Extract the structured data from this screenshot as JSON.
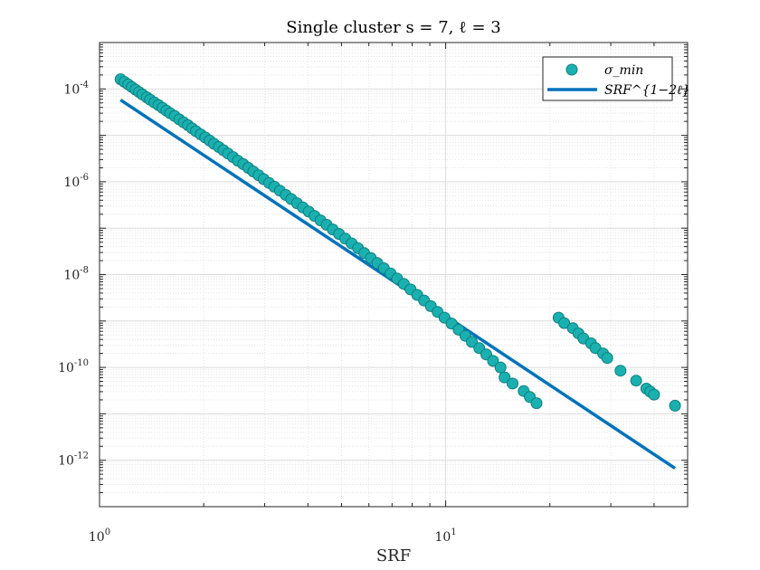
{
  "chart_data": {
    "type": "scatter",
    "title": "Single cluster s = 7, ℓ = 3",
    "xlabel": "SRF",
    "ylabel": "",
    "xscale": "log",
    "yscale": "log",
    "xlim": [
      1,
      50
    ],
    "ylim": [
      1e-13,
      0.001
    ],
    "grid": true,
    "minor_grid": true,
    "legend_position": "top-right",
    "x_ticks": [
      {
        "base": "10",
        "exp": "0"
      },
      {
        "base": "10",
        "exp": "1"
      }
    ],
    "y_ticks": [
      {
        "value": 0.0001,
        "base": "10",
        "exp": "-4"
      },
      {
        "value": 1e-06,
        "base": "10",
        "exp": "-6"
      },
      {
        "value": 1e-08,
        "base": "10",
        "exp": "-8"
      },
      {
        "value": 1e-10,
        "base": "10",
        "exp": "-10"
      },
      {
        "value": 1e-12,
        "base": "10",
        "exp": "-12"
      }
    ],
    "series": [
      {
        "name": "σ_min",
        "kind": "scatter",
        "color": "#1ab0b0",
        "edge_color": "#0e7f7f",
        "x": [
          1.15,
          1.18,
          1.21,
          1.24,
          1.27,
          1.3,
          1.33,
          1.37,
          1.4,
          1.44,
          1.48,
          1.52,
          1.56,
          1.6,
          1.65,
          1.7,
          1.75,
          1.8,
          1.85,
          1.9,
          1.96,
          2.02,
          2.08,
          2.14,
          2.21,
          2.28,
          2.35,
          2.43,
          2.51,
          2.6,
          2.69,
          2.78,
          2.88,
          2.98,
          3.09,
          3.2,
          3.32,
          3.45,
          3.58,
          3.72,
          3.87,
          4.02,
          4.18,
          4.35,
          4.53,
          4.72,
          4.92,
          5.13,
          5.35,
          5.58,
          5.82,
          6.08,
          6.35,
          6.63,
          6.93,
          7.24,
          7.57,
          7.92,
          8.28,
          8.66,
          9.06,
          9.48,
          9.92,
          10.4,
          10.9,
          11.4,
          11.9,
          12.5,
          13.1,
          13.7,
          14.4,
          14.8,
          15.6,
          16.8,
          17.5,
          18.3,
          21.2,
          22.0,
          23.3,
          24.2,
          25.0,
          26.3,
          27.1,
          28.5,
          29.3,
          32.0,
          35.5,
          38.0,
          39.0,
          40.0,
          46.0
        ],
        "y": [
          0.000162,
          0.000142,
          0.000125,
          0.00011,
          9.7e-05,
          8.6e-05,
          7.6e-05,
          6.6e-05,
          5.9e-05,
          5.1e-05,
          4.5e-05,
          3.9e-05,
          3.4e-05,
          3e-05,
          2.6e-05,
          2.2e-05,
          1.9e-05,
          1.65e-05,
          1.42e-05,
          1.23e-05,
          1.05e-05,
          9e-06,
          7.7e-06,
          6.6e-06,
          5.6e-06,
          4.8e-06,
          4.05e-06,
          3.4e-06,
          2.85e-06,
          2.4e-06,
          2e-06,
          1.67e-06,
          1.38e-06,
          1.14e-06,
          9.4e-07,
          7.8e-07,
          6.4e-07,
          5.2e-07,
          4.25e-07,
          3.45e-07,
          2.8e-07,
          2.27e-07,
          1.83e-07,
          1.47e-07,
          1.18e-07,
          9.4e-08,
          7.5e-08,
          5.95e-08,
          4.7e-08,
          3.7e-08,
          2.9e-08,
          2.27e-08,
          1.77e-08,
          1.37e-08,
          1.06e-08,
          8.2e-09,
          6.3e-09,
          4.8e-09,
          3.65e-09,
          2.77e-09,
          2.09e-09,
          1.57e-09,
          1.18e-09,
          8.8e-10,
          6.5e-10,
          4.8e-10,
          3.55e-10,
          2.6e-10,
          1.9e-10,
          1.38e-10,
          1e-10,
          6.1e-11,
          4.5e-11,
          3.1e-11,
          2.3e-11,
          1.7e-11,
          1.18e-09,
          9e-10,
          7e-10,
          5.4e-10,
          4.2e-10,
          3.3e-10,
          2.6e-10,
          2e-10,
          1.6e-10,
          8.5e-11,
          5.2e-11,
          3.5e-11,
          3e-11,
          2.6e-11,
          1.5e-11
        ]
      },
      {
        "name": "SRF^{1−2ℓ}",
        "kind": "line",
        "color": "#0072bd",
        "x": [
          1.15,
          46.0
        ],
        "y": [
          5.8e-05,
          6.7e-13
        ]
      }
    ]
  }
}
